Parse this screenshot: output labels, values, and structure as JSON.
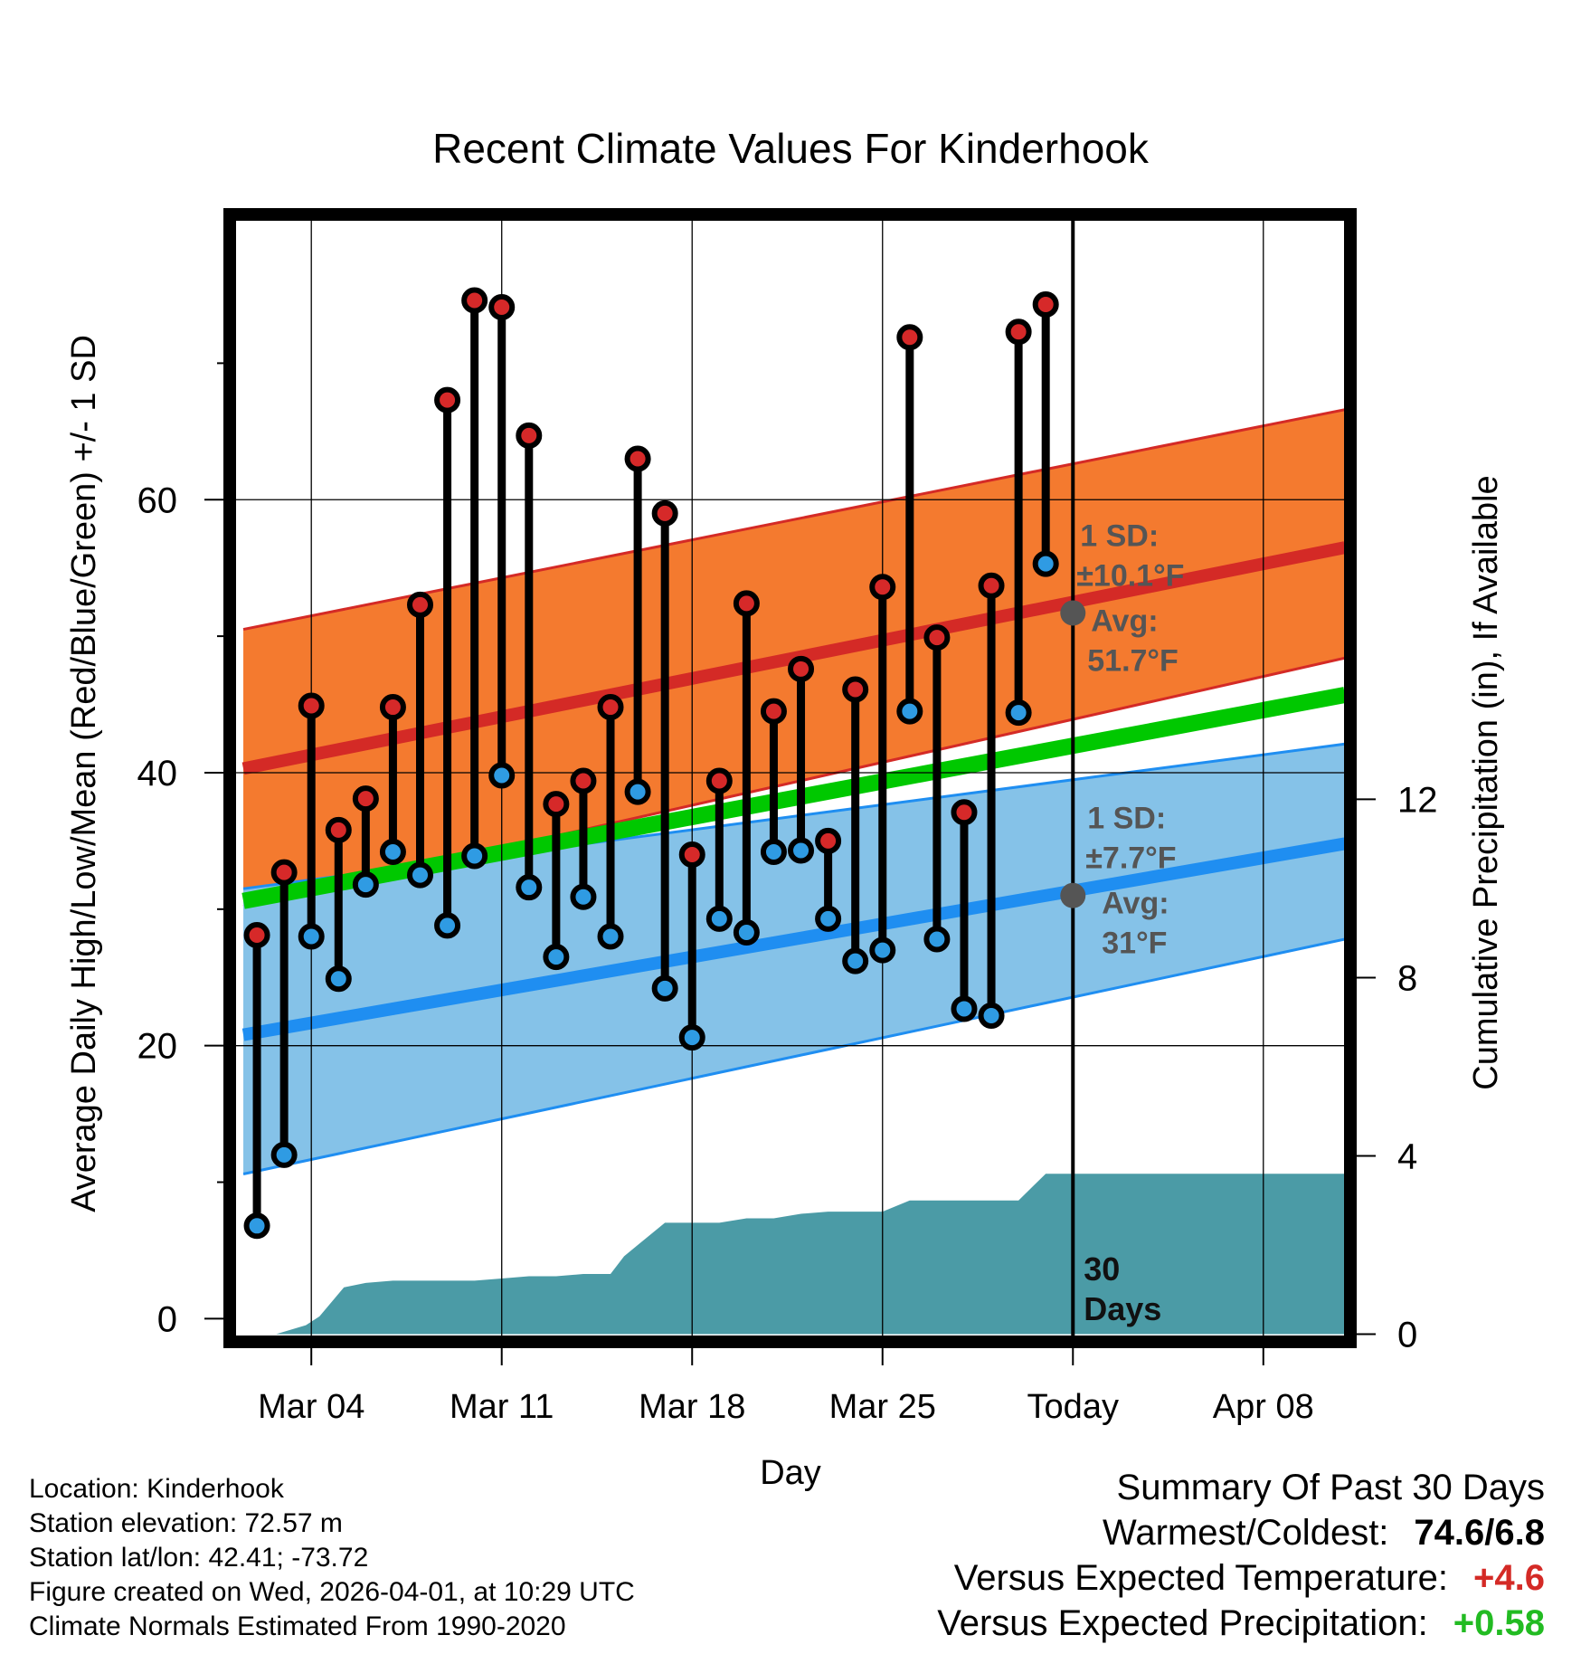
{
  "chart_data": {
    "type": "line",
    "title": "Recent Climate Values For Kinderhook",
    "xlabel": "Day",
    "ylabel_left": "Average Daily High/Low/Mean (Red/Blue/Green) +/- 1 SD",
    "ylabel_right": "Cumulative Precipitation (in), If Available",
    "x_ticks": [
      {
        "day": 4,
        "label": "Mar 04"
      },
      {
        "day": 11,
        "label": "Mar 11"
      },
      {
        "day": 18,
        "label": "Mar 18"
      },
      {
        "day": 25,
        "label": "Mar 25"
      },
      {
        "day": 32,
        "label": "Today"
      },
      {
        "day": 39,
        "label": "Apr 08"
      }
    ],
    "xlim": [
      1.2,
      42.0
    ],
    "ylim_left": [
      -1.3,
      80.5
    ],
    "yticks_left": [
      0,
      20,
      40,
      60
    ],
    "yticks_left_minor": [
      10,
      30,
      50,
      70
    ],
    "ylim_right": [
      -0.05,
      25.0
    ],
    "yticks_right": [
      0,
      4,
      8,
      12
    ],
    "today_day": 32,
    "today_label_num": "30",
    "today_label_text": "Days",
    "daily": {
      "days": [
        2,
        3,
        4,
        5,
        6,
        7,
        8,
        9,
        10,
        11,
        12,
        13,
        14,
        15,
        16,
        17,
        18,
        19,
        20,
        21,
        22,
        23,
        24,
        25,
        26,
        27,
        28,
        29,
        30,
        31
      ],
      "highs": [
        28.1,
        32.7,
        44.9,
        35.8,
        38.1,
        44.8,
        52.3,
        67.3,
        74.6,
        74.1,
        64.7,
        37.7,
        39.4,
        44.8,
        63.0,
        59.0,
        34.0,
        39.4,
        52.4,
        44.5,
        47.6,
        35.0,
        46.1,
        53.6,
        71.9,
        49.9,
        37.1,
        53.7,
        72.3,
        74.3
      ],
      "lows": [
        6.8,
        12.0,
        28.0,
        24.9,
        31.8,
        34.2,
        32.5,
        28.8,
        33.9,
        39.8,
        31.6,
        26.5,
        30.9,
        28.0,
        38.6,
        24.2,
        20.6,
        29.3,
        28.3,
        34.2,
        34.3,
        29.3,
        26.2,
        27.0,
        44.5,
        27.8,
        22.7,
        22.2,
        44.4,
        55.3
      ]
    },
    "normals": {
      "days": [
        1.5,
        42.0
      ],
      "high_mean": [
        40.3,
        56.5
      ],
      "high_upper": [
        50.5,
        66.6
      ],
      "high_lower": [
        30.2,
        48.4
      ],
      "low_mean": [
        20.8,
        34.8
      ],
      "low_upper": [
        31.5,
        42.1
      ],
      "low_lower": [
        10.6,
        27.8
      ],
      "mean": [
        30.6,
        45.7
      ]
    },
    "precip": {
      "days": [
        1.5,
        2.7,
        3.8,
        4.3,
        5.2,
        6.0,
        7.0,
        8.0,
        10.0,
        11.0,
        12.0,
        13.0,
        14.0,
        15.0,
        15.5,
        16.0,
        17.0,
        18.0,
        19.0,
        20.0,
        21.0,
        22.0,
        23.0,
        24.0,
        25.0,
        26.0,
        27.0,
        28.0,
        29.0,
        30.0,
        31.0,
        42.0
      ],
      "values": [
        0.0,
        0.0,
        0.2,
        0.4,
        1.05,
        1.15,
        1.2,
        1.2,
        1.2,
        1.25,
        1.3,
        1.3,
        1.35,
        1.35,
        1.75,
        2.0,
        2.5,
        2.5,
        2.5,
        2.6,
        2.6,
        2.7,
        2.75,
        2.75,
        2.75,
        3.0,
        3.0,
        3.0,
        3.0,
        3.0,
        3.6,
        3.6
      ]
    },
    "annotations": {
      "high": {
        "sd_title": "1 SD:",
        "sd_value": "±10.1°F",
        "avg_title": "Avg:",
        "avg_value": "51.7°F",
        "avg": 51.7
      },
      "low": {
        "sd_title": "1 SD:",
        "sd_value": "±7.7°F",
        "avg_title": "Avg:",
        "avg_value": "31°F",
        "avg": 31.0
      }
    },
    "colors": {
      "high_band": "#f47a2f",
      "high_line": "#d42a26",
      "low_band": "#85c2e8",
      "low_line": "#1f8ef1",
      "mean_line": "#00c800",
      "precip_fill": "#4b9ba6",
      "annotation_text": "#555555",
      "high_dot": "#d62929",
      "low_dot": "#2f9be3"
    }
  },
  "info": {
    "location": "Location: Kinderhook",
    "elevation": "Station elevation: 72.57 m",
    "latlon": "Station lat/lon: 42.41; -73.72",
    "created": "Figure created on Wed, 2026-04-01, at 10:29 UTC",
    "normals": "Climate Normals Estimated From 1990-2020"
  },
  "summary": {
    "heading": "Summary Of Past 30 Days",
    "warm_cold_label": "Warmest/Coldest:",
    "warm_cold_value": "74.6/6.8",
    "temp_label": "Versus Expected Temperature:",
    "temp_value": "+4.6",
    "temp_color": "#d42a26",
    "precip_label": "Versus Expected Precipitation:",
    "precip_value": "+0.58",
    "precip_color": "#22bb22"
  }
}
